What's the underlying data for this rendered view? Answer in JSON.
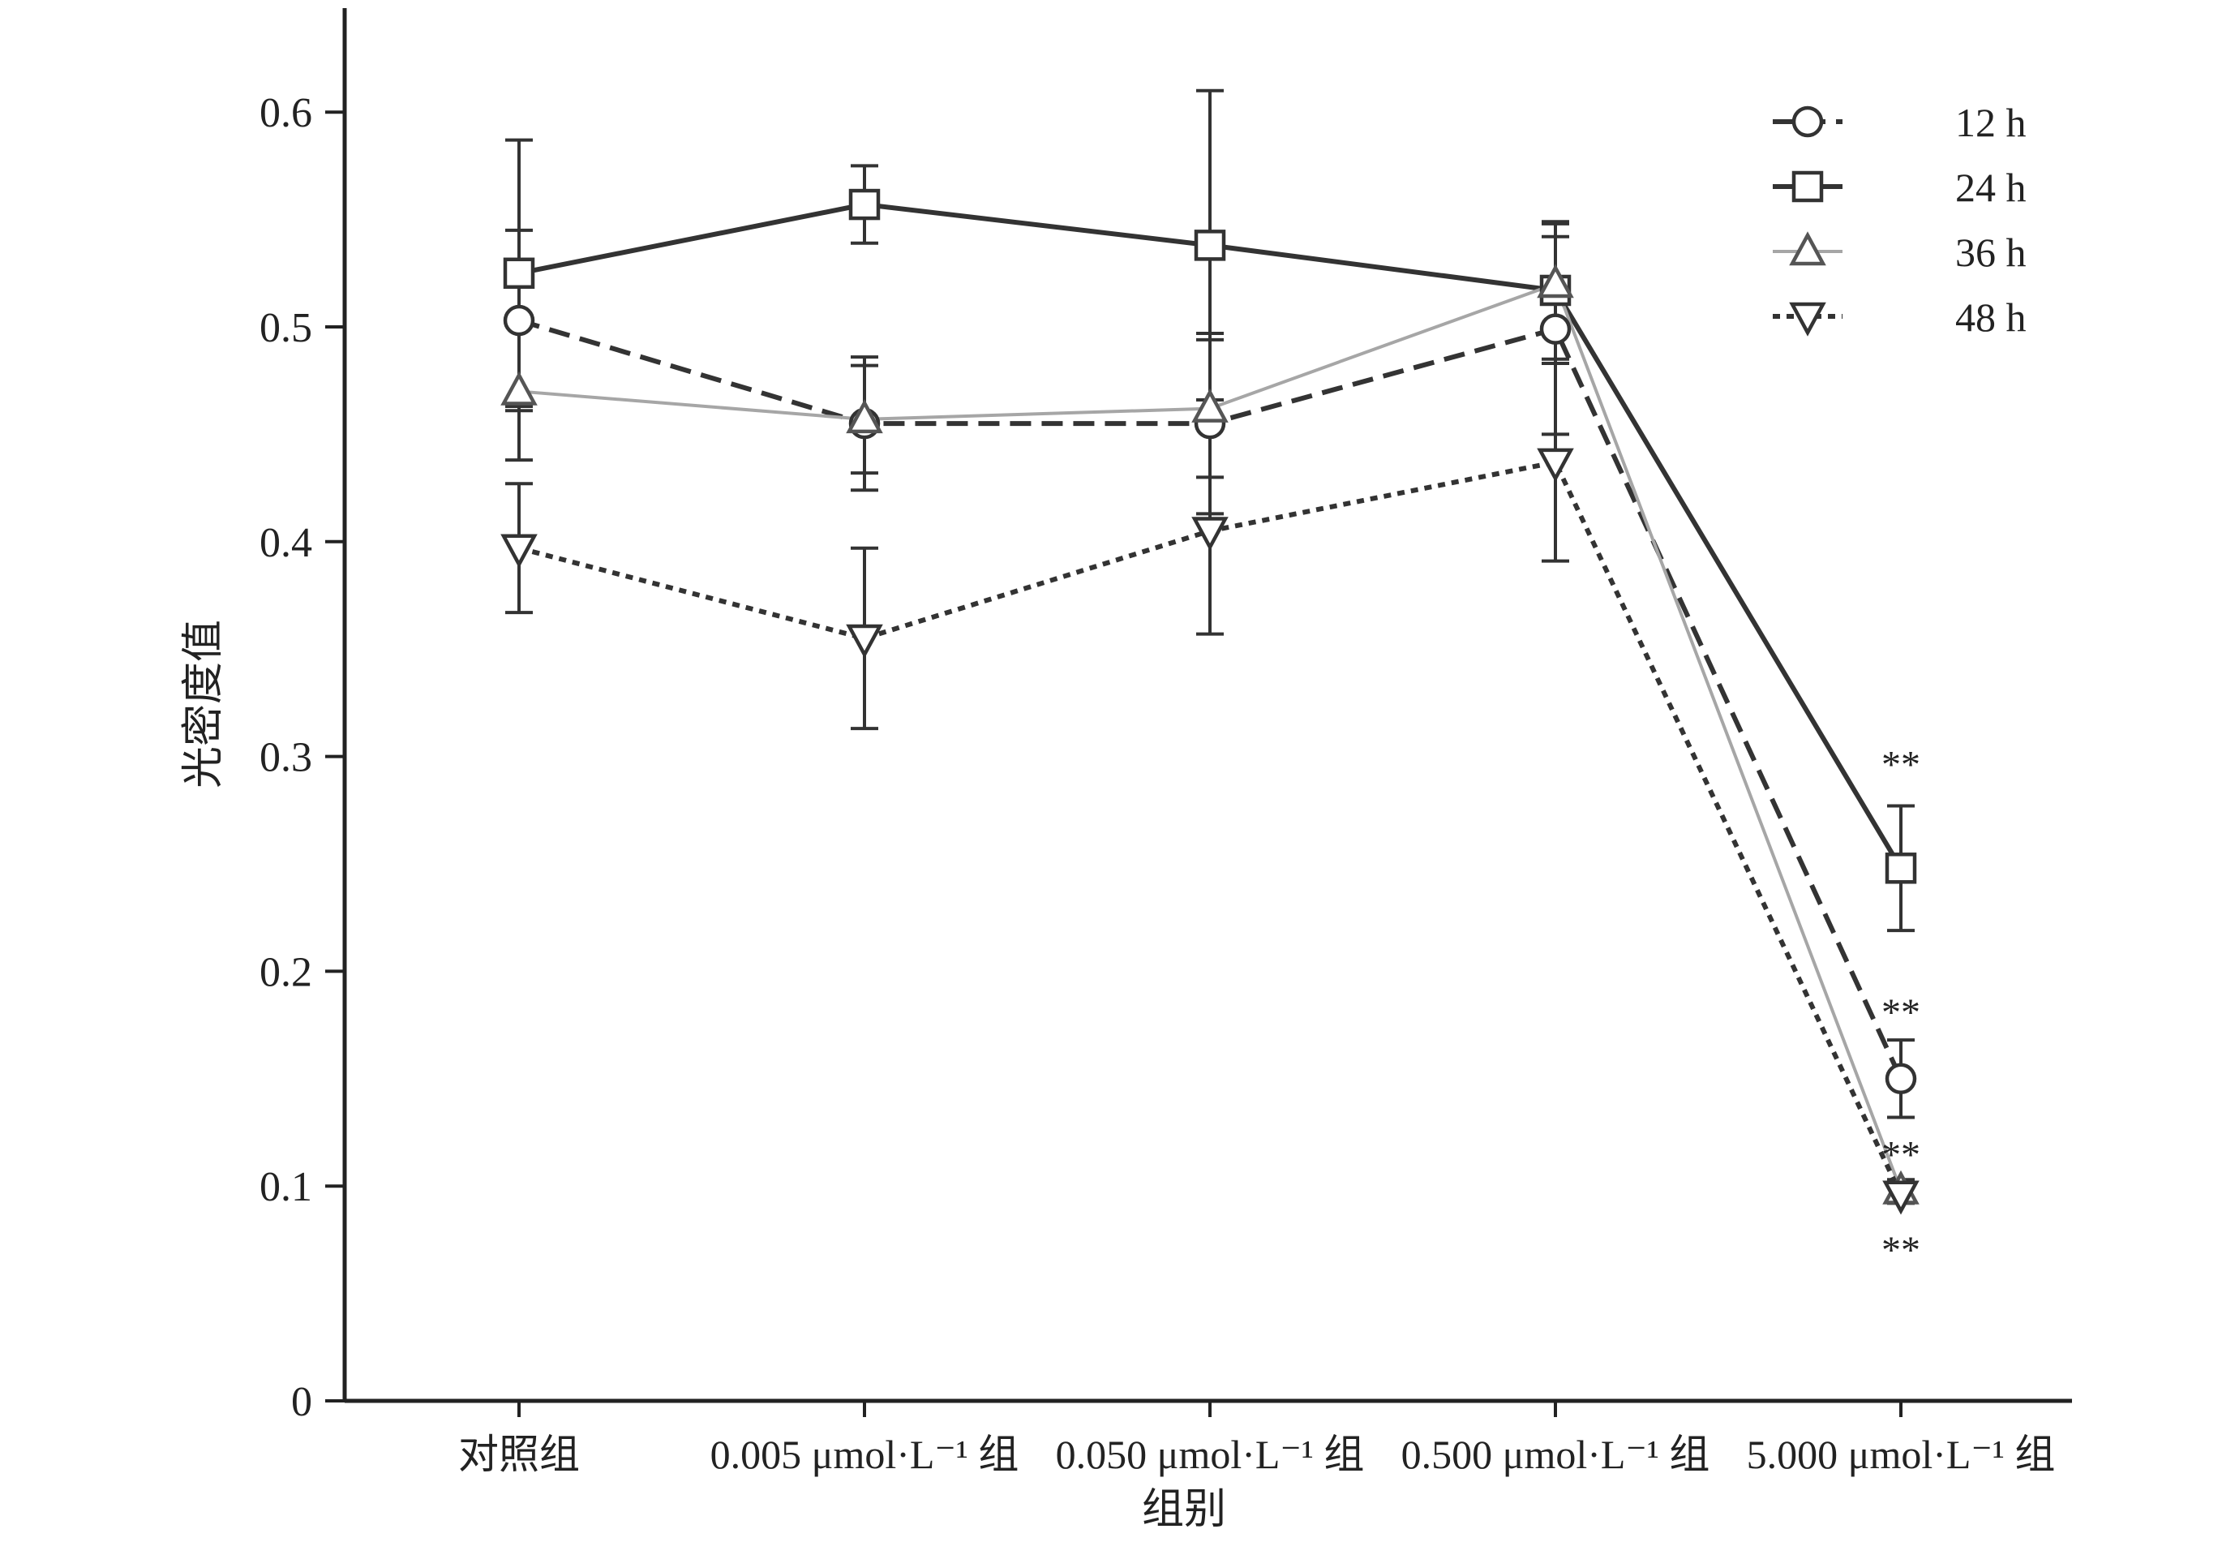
{
  "chart_data": {
    "type": "line",
    "xlabel": "组别",
    "ylabel": "光密度值",
    "categories": [
      "对照组",
      "0.005 μmol·L⁻¹ 组",
      "0.050 μmol·L⁻¹ 组",
      "0.500 μmol·L⁻¹ 组",
      "5.000 μmol·L⁻¹ 组"
    ],
    "ylim": [
      0,
      0.65
    ],
    "yticks": [
      0,
      0.1,
      0.2,
      0.3,
      0.4,
      0.5,
      0.6
    ],
    "ytick_labels": [
      "0",
      "0.1",
      "0.2",
      "0.3",
      "0.4",
      "0.5",
      "0.6"
    ],
    "grid": false,
    "legend_position": "top-right",
    "series": [
      {
        "name": "12 h",
        "marker": "circle",
        "line_style": "dashed",
        "color": "#333333",
        "values": [
          0.503,
          0.455,
          0.455,
          0.499,
          0.15
        ],
        "errors": [
          0.042,
          0.031,
          0.042,
          0.049,
          0.018
        ],
        "annotations": [
          "",
          "",
          "",
          "",
          "**"
        ]
      },
      {
        "name": "24 h",
        "marker": "square",
        "line_style": "solid",
        "color": "#333333",
        "values": [
          0.525,
          0.557,
          0.538,
          0.517,
          0.248
        ],
        "errors": [
          0.062,
          0.018,
          0.072,
          0.032,
          0.029
        ],
        "annotations": [
          "",
          "",
          "",
          "",
          "**"
        ]
      },
      {
        "name": "36 h",
        "marker": "triangle-up",
        "line_style": "solid",
        "color": "#a6a6a6",
        "values": [
          0.47,
          0.457,
          0.462,
          0.52,
          0.098
        ],
        "errors": [
          0.032,
          0.025,
          0.032,
          0.022,
          0.005
        ],
        "annotations": [
          "",
          "",
          "",
          "",
          "**"
        ]
      },
      {
        "name": "48 h",
        "marker": "triangle-down",
        "line_style": "dotted",
        "color": "#333333",
        "values": [
          0.397,
          0.355,
          0.405,
          0.437,
          0.096
        ],
        "errors": [
          0.03,
          0.042,
          0.048,
          0.046,
          0.004
        ],
        "annotations": [
          "",
          "",
          "",
          "",
          "**"
        ]
      }
    ]
  }
}
